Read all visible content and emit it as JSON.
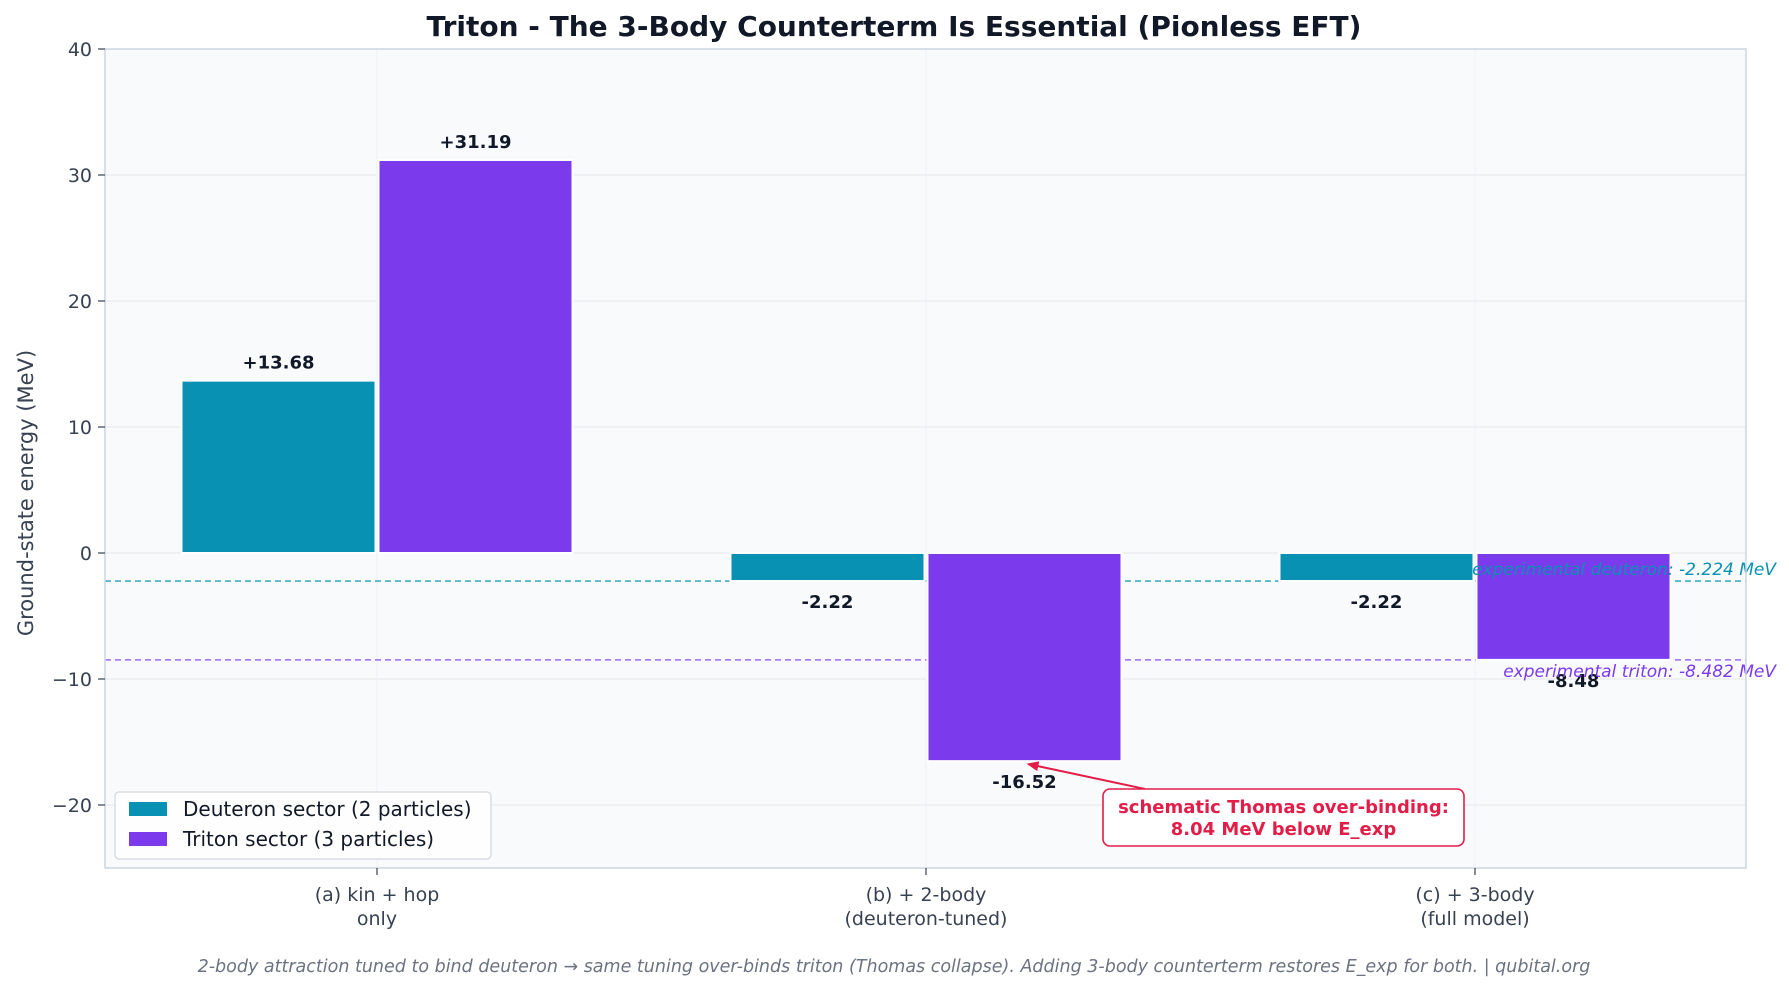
{
  "chart_data": {
    "type": "bar",
    "title": "Triton - The 3-Body Counterterm Is Essential (Pionless EFT)",
    "ylabel": "Ground-state energy (MeV)",
    "xlabel": "",
    "ylim": [
      -25,
      40
    ],
    "yticks": [
      -20,
      -10,
      0,
      10,
      20,
      30,
      40
    ],
    "ytick_labels": [
      "−20",
      "−10",
      "0",
      "10",
      "20",
      "30",
      "40"
    ],
    "grid": true,
    "legend_position": "bottom-left",
    "categories": [
      [
        "(a) kin + hop",
        "only"
      ],
      [
        "(b) + 2-body",
        "(deuteron-tuned)"
      ],
      [
        "(c) + 3-body",
        "(full model)"
      ]
    ],
    "series": [
      {
        "name": "Deuteron sector (2 particles)",
        "color": "#0891b2",
        "values": [
          13.68,
          -2.224,
          -2.224
        ],
        "labels": [
          "+13.68",
          "-2.22",
          "-2.22"
        ]
      },
      {
        "name": "Triton sector (3 particles)",
        "color": "#7c3aed",
        "values": [
          31.19,
          -16.52,
          -8.482
        ],
        "labels": [
          "+31.19",
          "-16.52",
          "-8.48"
        ]
      }
    ],
    "reference_lines": [
      {
        "value": -2.224,
        "label": "experimental deuteron: -2.224 MeV",
        "color": "#0891b2"
      },
      {
        "value": -8.482,
        "label": "experimental triton: -8.482 MeV",
        "color": "#7c3aed"
      }
    ],
    "annotation": {
      "lines": [
        "schematic Thomas over-binding:",
        "8.04 MeV below E_exp"
      ],
      "color": "#e11d48",
      "points_to_category": 1,
      "points_to_series": 1
    },
    "footer": "2-body attraction tuned to bind deuteron → same tuning over-binds triton (Thomas collapse).  Adding 3-body counterterm restores E_exp for both.  |  qubital.org"
  }
}
